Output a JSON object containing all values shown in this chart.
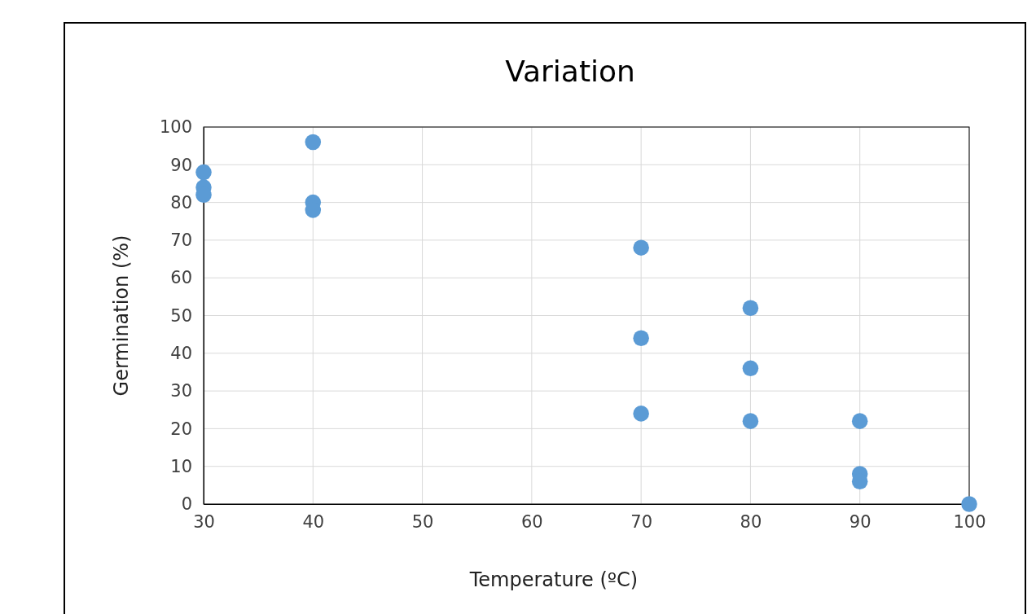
{
  "chart_data": {
    "type": "scatter",
    "title": "Variation",
    "xlabel": "Temperature (ºC)",
    "ylabel": "Germination (%)",
    "x": [
      30,
      30,
      30,
      40,
      40,
      40,
      70,
      70,
      70,
      80,
      80,
      80,
      90,
      90,
      90,
      100
    ],
    "series": [
      {
        "color": "#5b9bd5",
        "values": [
          88,
          84,
          82,
          96,
          80,
          78,
          68,
          44,
          24,
          52,
          36,
          22,
          22,
          8,
          6,
          0
        ]
      }
    ],
    "xlim": [
      30,
      100
    ],
    "xticks": [
      30,
      40,
      50,
      60,
      70,
      80,
      90,
      100
    ],
    "ylim": [
      0,
      100
    ],
    "yticks": [
      0,
      10,
      20,
      30,
      40,
      50,
      60,
      70,
      80,
      90,
      100
    ],
    "grid": true,
    "marker": "circle"
  }
}
